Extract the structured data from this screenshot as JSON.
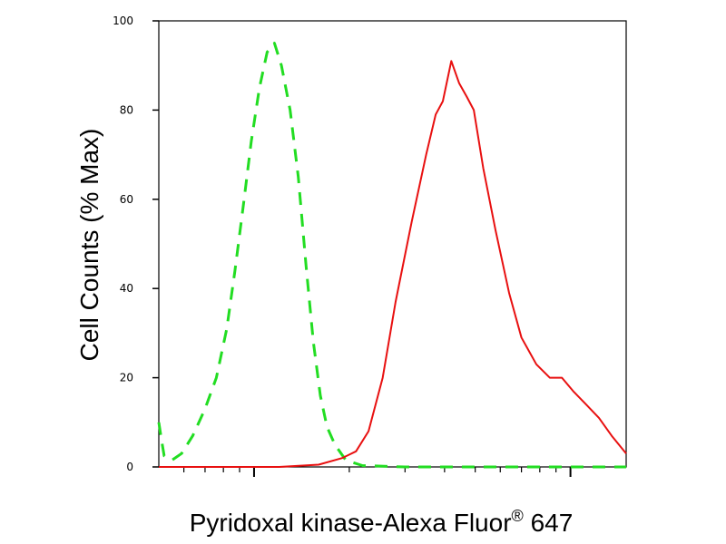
{
  "chart_data": {
    "type": "line",
    "title": "",
    "xlabel": "Pyridoxal kinase-Alexa Fluor",
    "xlabel_superscript": "®",
    "xlabel_suffix": "647",
    "ylabel": "Cell Counts (% Max)",
    "x_scale": "log",
    "xlim": [
      0.5,
      15
    ],
    "ylim": [
      0,
      100
    ],
    "y_ticks": [
      0,
      20,
      40,
      60,
      80,
      100
    ],
    "y_tick_labels": [
      "0",
      "20",
      "40",
      "60",
      "80",
      "100"
    ],
    "x_major_ticks": [
      1,
      10
    ],
    "x_minor_ticks": [
      0.6,
      0.7,
      0.8,
      0.9,
      2,
      3,
      4,
      5,
      6,
      7,
      8,
      9
    ],
    "x_tick_labels_shown": false,
    "grid": false,
    "legend": "none",
    "series": [
      {
        "color": "#22dd22",
        "style": "dashed",
        "points": [
          [
            0.5,
            10
          ],
          [
            0.51,
            6
          ],
          [
            0.52,
            2.5
          ],
          [
            0.55,
            1.5
          ],
          [
            0.59,
            3
          ],
          [
            0.64,
            7
          ],
          [
            0.7,
            13
          ],
          [
            0.76,
            20
          ],
          [
            0.82,
            31
          ],
          [
            0.87,
            44
          ],
          [
            0.93,
            60
          ],
          [
            0.98,
            73
          ],
          [
            1.04,
            85
          ],
          [
            1.1,
            93
          ],
          [
            1.16,
            95
          ],
          [
            1.22,
            90
          ],
          [
            1.3,
            80
          ],
          [
            1.38,
            65
          ],
          [
            1.46,
            45
          ],
          [
            1.54,
            28
          ],
          [
            1.62,
            16
          ],
          [
            1.7,
            9
          ],
          [
            1.8,
            5
          ],
          [
            1.95,
            1.5
          ],
          [
            2.2,
            0.3
          ],
          [
            3,
            0
          ],
          [
            5,
            0
          ],
          [
            8,
            0
          ],
          [
            15,
            0
          ]
        ]
      },
      {
        "color": "#e81010",
        "style": "solid",
        "points": [
          [
            0.5,
            0
          ],
          [
            1.2,
            0
          ],
          [
            1.6,
            0.5
          ],
          [
            1.9,
            2
          ],
          [
            2.1,
            3.5
          ],
          [
            2.3,
            8
          ],
          [
            2.55,
            20
          ],
          [
            2.8,
            37
          ],
          [
            3.15,
            55
          ],
          [
            3.5,
            70
          ],
          [
            3.75,
            79
          ],
          [
            3.95,
            82
          ],
          [
            4.2,
            91
          ],
          [
            4.45,
            86
          ],
          [
            4.7,
            83
          ],
          [
            4.95,
            80
          ],
          [
            5.3,
            67
          ],
          [
            5.8,
            53
          ],
          [
            6.4,
            39
          ],
          [
            7.0,
            29
          ],
          [
            7.8,
            23
          ],
          [
            8.6,
            20
          ],
          [
            9.4,
            20
          ],
          [
            10.2,
            17
          ],
          [
            11.2,
            14
          ],
          [
            12.3,
            11
          ],
          [
            13.5,
            7
          ],
          [
            15,
            3
          ]
        ]
      }
    ]
  }
}
